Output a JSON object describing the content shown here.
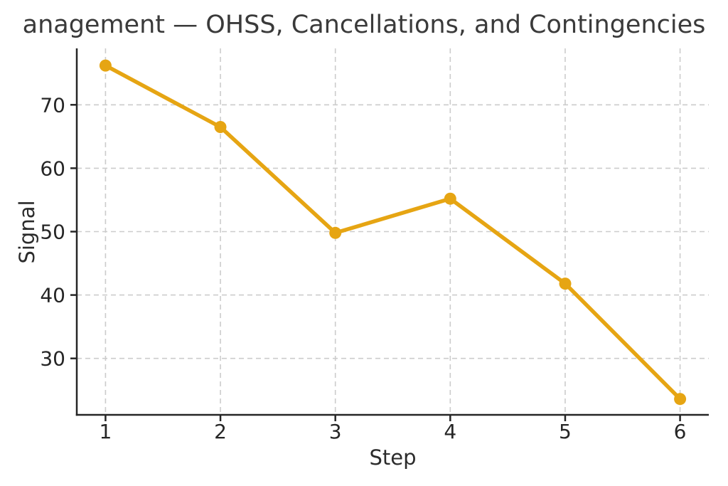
{
  "chart_data": {
    "type": "line",
    "title": "anagement — OHSS, Cancellations, and Contingencies",
    "xlabel": "Step",
    "ylabel": "Signal",
    "x": [
      1,
      2,
      3,
      4,
      5,
      6
    ],
    "series": [
      {
        "name": "Signal",
        "values": [
          76.2,
          66.5,
          49.8,
          55.2,
          41.8,
          23.6
        ]
      }
    ],
    "xticks": [
      1,
      2,
      3,
      4,
      5,
      6
    ],
    "yticks": [
      30,
      40,
      50,
      60,
      70
    ],
    "xlim": [
      0.75,
      6.25
    ],
    "ylim": [
      21.1,
      78.9
    ],
    "grid": true,
    "grid_style": "dashed",
    "legend_position": "none",
    "colors": {
      "line": "#E6A513",
      "marker": "#E6A513",
      "grid": "#cccccc",
      "spine": "#262626",
      "text": "#262626",
      "title_text": "#3a3a3a",
      "background": "#ffffff"
    }
  }
}
